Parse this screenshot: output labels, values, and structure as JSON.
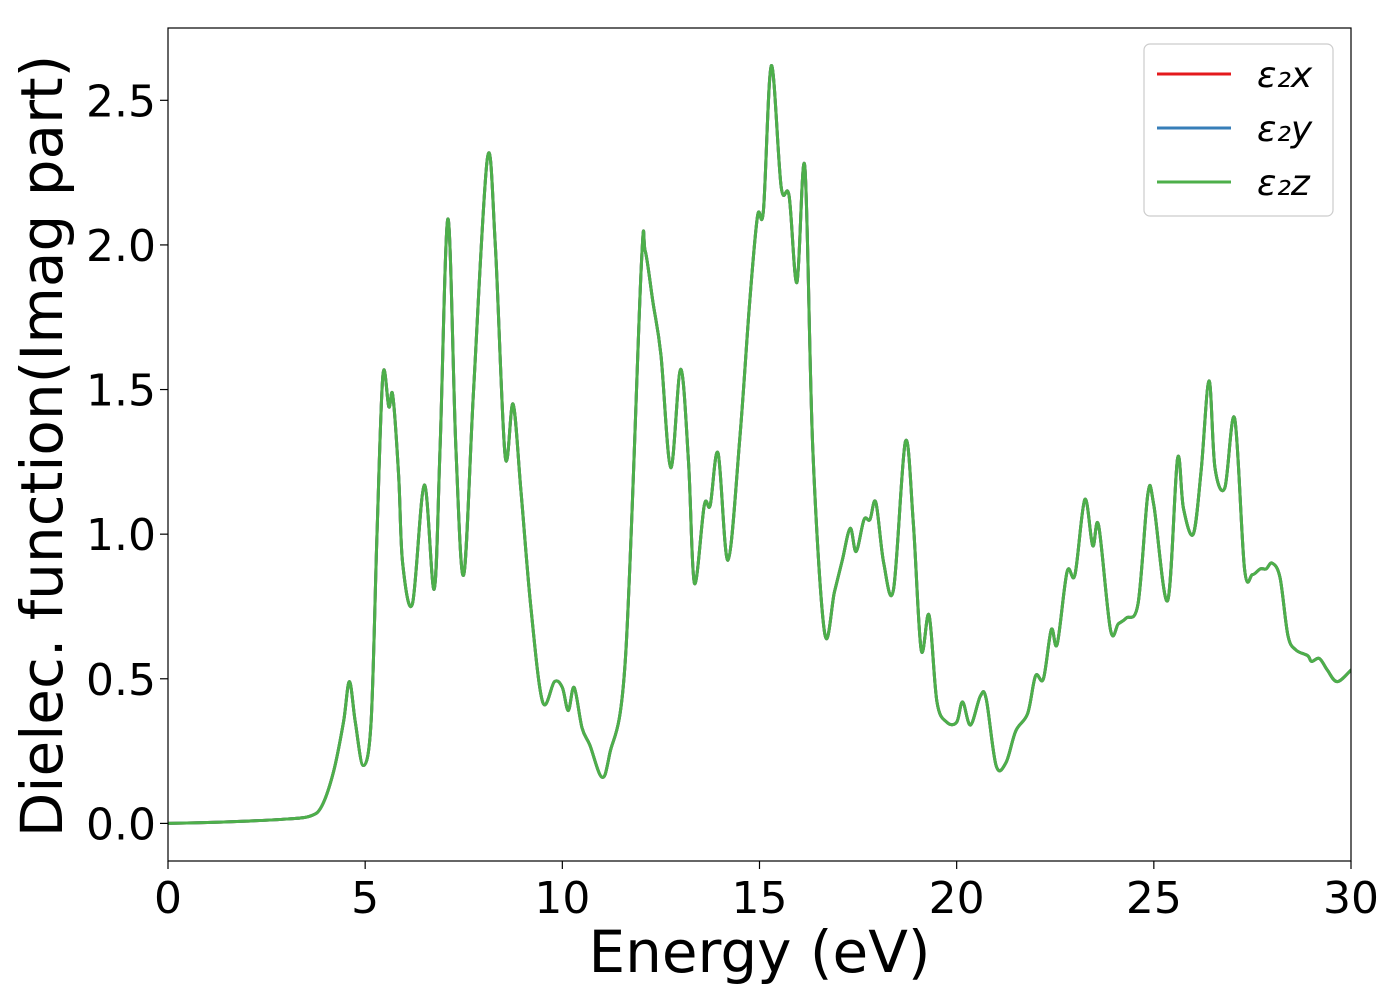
{
  "chart_data": {
    "type": "line",
    "xlabel": "Energy (eV)",
    "ylabel": "Dielec. function(Imag part)",
    "xlim": [
      0,
      30
    ],
    "ylim": [
      -0.13,
      2.75
    ],
    "xticks": [
      0,
      5,
      10,
      15,
      20,
      25,
      30
    ],
    "yticks": [
      0.0,
      0.5,
      1.0,
      1.5,
      2.0,
      2.5
    ],
    "xtick_labels": [
      "0",
      "5",
      "10",
      "15",
      "20",
      "25",
      "30"
    ],
    "ytick_labels": [
      "0.0",
      "0.5",
      "1.0",
      "1.5",
      "2.0",
      "2.5"
    ],
    "grid": false,
    "legend_position": "top-right",
    "x": [
      0,
      1,
      2,
      3,
      3.6,
      3.9,
      4.2,
      4.45,
      4.6,
      4.75,
      4.95,
      5.15,
      5.3,
      5.45,
      5.6,
      5.7,
      5.85,
      5.95,
      6.2,
      6.5,
      6.75,
      6.9,
      7.1,
      7.3,
      7.5,
      7.75,
      8.1,
      8.3,
      8.55,
      8.75,
      8.95,
      9.2,
      9.5,
      9.8,
      10.0,
      10.15,
      10.3,
      10.5,
      10.7,
      11.0,
      11.2,
      11.6,
      12.0,
      12.1,
      12.3,
      12.5,
      12.75,
      13.0,
      13.2,
      13.35,
      13.6,
      13.75,
      13.95,
      14.2,
      14.5,
      14.75,
      14.95,
      15.1,
      15.3,
      15.55,
      15.75,
      15.95,
      16.15,
      16.35,
      16.65,
      16.9,
      17.1,
      17.3,
      17.45,
      17.65,
      17.8,
      17.95,
      18.15,
      18.4,
      18.7,
      18.9,
      19.1,
      19.3,
      19.5,
      19.75,
      20.0,
      20.15,
      20.35,
      20.6,
      20.75,
      21.0,
      21.25,
      21.5,
      21.8,
      22.0,
      22.2,
      22.4,
      22.55,
      22.8,
      23.0,
      23.25,
      23.45,
      23.6,
      23.9,
      24.1,
      24.3,
      24.6,
      24.85,
      25.0,
      25.35,
      25.6,
      25.75,
      26.0,
      26.2,
      26.4,
      26.55,
      26.8,
      27.05,
      27.3,
      27.5,
      27.7,
      27.85,
      28.0,
      28.2,
      28.4,
      28.6,
      28.9,
      29.0,
      29.2,
      29.4,
      29.65,
      30.0
    ],
    "series": [
      {
        "name": "ε₂x",
        "color": "#e41a1c"
      },
      {
        "name": "ε₂y",
        "color": "#377eb8"
      },
      {
        "name": "ε₂z",
        "color": "#4daf4a"
      }
    ],
    "values": [
      0.0,
      0.003,
      0.008,
      0.015,
      0.025,
      0.06,
      0.18,
      0.35,
      0.49,
      0.35,
      0.2,
      0.35,
      1.0,
      1.55,
      1.44,
      1.48,
      1.2,
      0.9,
      0.76,
      1.17,
      0.81,
      1.3,
      2.09,
      1.3,
      0.86,
      1.5,
      2.3,
      2.0,
      1.27,
      1.45,
      1.15,
      0.75,
      0.42,
      0.49,
      0.47,
      0.39,
      0.47,
      0.33,
      0.27,
      0.16,
      0.24,
      0.57,
      1.92,
      1.98,
      1.8,
      1.62,
      1.23,
      1.57,
      1.25,
      0.83,
      1.1,
      1.1,
      1.28,
      0.91,
      1.33,
      1.8,
      2.1,
      2.12,
      2.62,
      2.2,
      2.17,
      1.87,
      2.27,
      1.3,
      0.66,
      0.8,
      0.91,
      1.02,
      0.94,
      1.05,
      1.05,
      1.11,
      0.9,
      0.81,
      1.32,
      1.04,
      0.6,
      0.72,
      0.42,
      0.35,
      0.35,
      0.42,
      0.34,
      0.44,
      0.43,
      0.2,
      0.21,
      0.32,
      0.38,
      0.51,
      0.5,
      0.67,
      0.62,
      0.87,
      0.86,
      1.12,
      0.96,
      1.03,
      0.67,
      0.69,
      0.71,
      0.76,
      1.14,
      1.1,
      0.77,
      1.26,
      1.09,
      1.0,
      1.22,
      1.53,
      1.23,
      1.16,
      1.4,
      0.88,
      0.86,
      0.88,
      0.88,
      0.9,
      0.85,
      0.65,
      0.6,
      0.58,
      0.56,
      0.57,
      0.53,
      0.49,
      0.53
    ]
  }
}
